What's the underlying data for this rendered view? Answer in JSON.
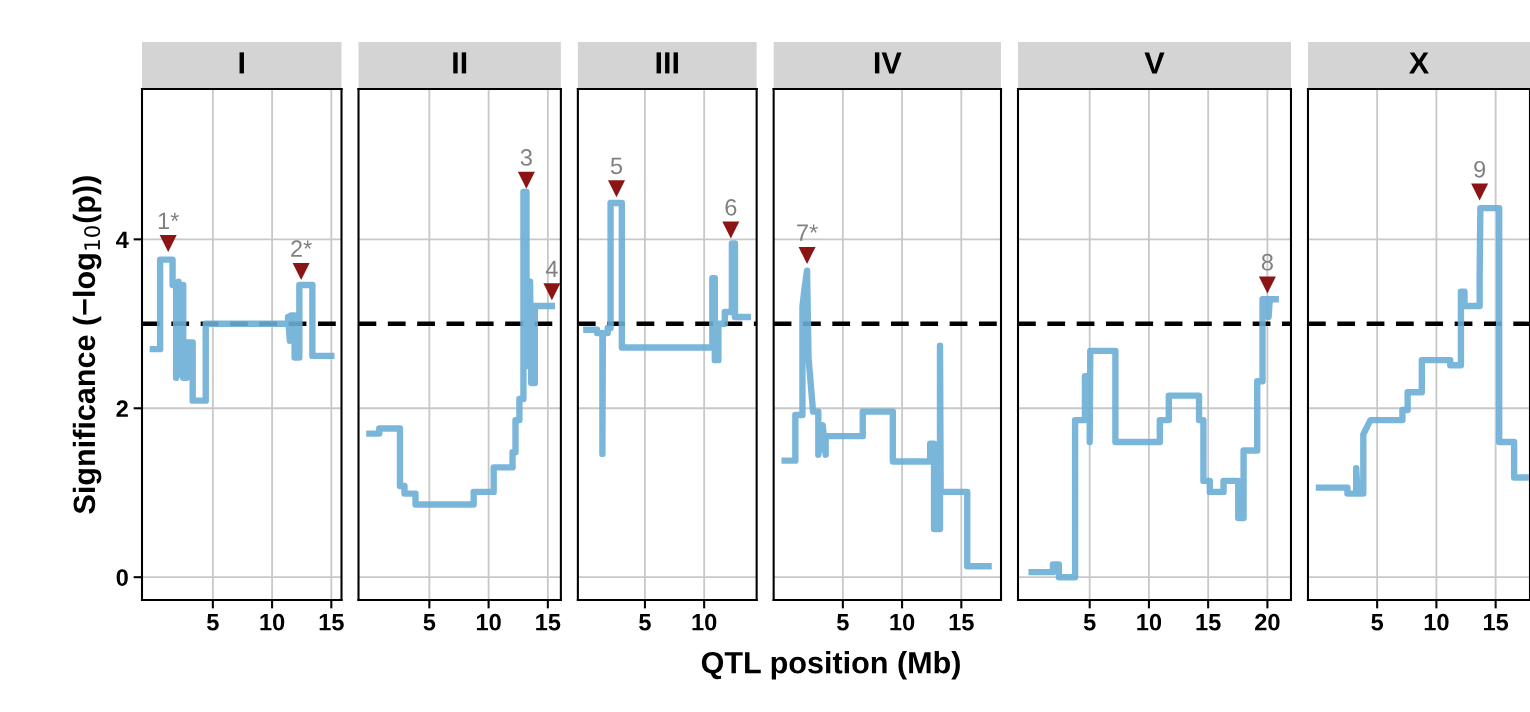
{
  "chart_data": [
    {
      "type": "line",
      "title": "I",
      "ylabel": "Significance (−log$_{10}$(p))",
      "xlim": [
        -0.98,
        15.86
      ],
      "xticks": [
        5,
        10,
        15
      ],
      "ylim": [
        -0.27,
        5.78
      ],
      "yticks": [
        0,
        2,
        4
      ],
      "grid": true,
      "line_style": "solid",
      "series": [
        {
          "color": "#6baed6",
          "x": [
            -0.06,
            0.55,
            0.55,
            1.6,
            1.6,
            1.9,
            1.9,
            2.1,
            2.2,
            2.5,
            2.5,
            2.8,
            2.8,
            3.3,
            3.3,
            4.4,
            4.4,
            11.35,
            11.35,
            11.5,
            11.6,
            11.9,
            11.9,
            12.3,
            12.3,
            13.4,
            13.4,
            15.0
          ],
          "values": [
            2.7,
            2.7,
            3.76,
            3.76,
            3.46,
            3.46,
            2.36,
            3.5,
            2.4,
            3.46,
            2.36,
            2.36,
            2.78,
            2.78,
            2.09,
            2.09,
            3.0,
            3.0,
            3.08,
            2.8,
            3.1,
            3.1,
            2.6,
            2.6,
            3.46,
            3.46,
            2.62,
            2.62
          ]
        },
        {
          "type": "scatter",
          "marker": "triangle",
          "color": "#8b1515",
          "x": [
            1.23,
            12.45
          ],
          "values": [
            3.95,
            3.62
          ]
        }
      ],
      "annotations": [
        {
          "text": "1*",
          "x": 1.23,
          "y": 3.95
        },
        {
          "text": "2*",
          "x": 12.45,
          "y": 3.62
        }
      ],
      "ref_lines": [
        {
          "axis": "y",
          "value": 3,
          "color": "#000000",
          "line_style": "dashed"
        }
      ]
    },
    {
      "type": "line",
      "title": "II",
      "xlim": [
        -0.98,
        16.1
      ],
      "xticks": [
        5,
        10,
        15
      ],
      "ylim": [
        -0.27,
        5.78
      ],
      "yticks": [
        0,
        2,
        4
      ],
      "grid": true,
      "tick_labels": "x",
      "line_style": "solid",
      "series": [
        {
          "color": "#6baed6",
          "x": [
            -0.06,
            0.77,
            0.77,
            2.52,
            2.52,
            2.9,
            2.9,
            3.83,
            3.83,
            8.74,
            8.74,
            10.43,
            10.43,
            12.02,
            12.02,
            12.27,
            12.27,
            12.6,
            12.6,
            12.94,
            12.94,
            13.2,
            13.2,
            13.5,
            13.6,
            13.9,
            13.9,
            15.34
          ],
          "values": [
            1.7,
            1.7,
            1.76,
            1.76,
            1.08,
            1.08,
            0.99,
            0.99,
            0.86,
            0.86,
            1.01,
            1.01,
            1.3,
            1.3,
            1.48,
            1.48,
            1.86,
            1.86,
            2.11,
            2.11,
            4.56,
            4.56,
            2.5,
            3.5,
            2.3,
            2.3,
            3.21,
            3.21
          ]
        },
        {
          "type": "scatter",
          "marker": "triangle",
          "color": "#8b1515",
          "x": [
            13.19,
            15.34
          ],
          "values": [
            4.7,
            3.38
          ]
        }
      ],
      "annotations": [
        {
          "text": "3",
          "x": 13.19,
          "y": 4.7
        },
        {
          "text": "4",
          "x": 15.34,
          "y": 3.38
        }
      ],
      "ref_lines": [
        {
          "axis": "y",
          "value": 3,
          "color": "#000000",
          "line_style": "dashed"
        }
      ]
    },
    {
      "type": "line",
      "title": "III",
      "xlim": [
        -0.66,
        14.43
      ],
      "xticks": [
        5,
        10
      ],
      "ylim": [
        -0.27,
        5.78
      ],
      "yticks": [
        0,
        2,
        4
      ],
      "grid": true,
      "tick_labels": "x",
      "line_style": "solid",
      "series": [
        {
          "color": "#6baed6",
          "x": [
            0.06,
            0.96,
            0.96,
            1.41,
            1.41,
            1.45,
            1.86,
            1.86,
            2.1,
            2.1,
            3.05,
            3.05,
            10.69,
            10.69,
            10.9,
            10.9,
            11.2,
            11.2,
            11.74,
            11.74,
            12.34,
            12.34,
            12.6,
            12.6,
            13.68
          ],
          "values": [
            2.93,
            2.93,
            2.89,
            2.89,
            1.46,
            2.89,
            2.89,
            2.95,
            2.95,
            4.43,
            4.43,
            2.72,
            2.72,
            3.54,
            3.54,
            2.57,
            2.57,
            3.0,
            3.0,
            3.14,
            3.14,
            3.95,
            3.95,
            3.08,
            3.08
          ]
        },
        {
          "type": "scatter",
          "marker": "triangle",
          "color": "#8b1515",
          "x": [
            2.6,
            12.25
          ],
          "values": [
            4.6,
            4.11
          ]
        }
      ],
      "annotations": [
        {
          "text": "5",
          "x": 2.6,
          "y": 4.6
        },
        {
          "text": "6",
          "x": 12.25,
          "y": 4.11
        }
      ],
      "ref_lines": [
        {
          "axis": "y",
          "value": 3,
          "color": "#000000",
          "line_style": "dashed"
        }
      ]
    },
    {
      "type": "line",
      "title": "IV",
      "xlabel": "QTL position (Mb)",
      "xlim": [
        -0.84,
        18.35
      ],
      "xticks": [
        5,
        10,
        15
      ],
      "ylim": [
        -0.27,
        5.78
      ],
      "yticks": [
        0,
        2,
        4
      ],
      "grid": true,
      "tick_labels": "x",
      "line_style": "solid",
      "series": [
        {
          "color": "#6baed6",
          "x": [
            0.09,
            0.99,
            0.99,
            1.59,
            1.59,
            1.75,
            1.98,
            2.1,
            2.49,
            2.93,
            2.93,
            3.3,
            3.55,
            3.55,
            6.68,
            6.68,
            9.22,
            9.22,
            12.37,
            12.37,
            12.7,
            12.7,
            13.2,
            13.2,
            13.26,
            15.5,
            15.5,
            17.3
          ],
          "values": [
            1.38,
            1.38,
            1.92,
            1.92,
            3.2,
            3.4,
            3.63,
            2.6,
            1.96,
            1.96,
            1.45,
            1.8,
            1.45,
            1.67,
            1.67,
            1.96,
            1.96,
            1.37,
            1.37,
            1.58,
            1.58,
            0.57,
            0.57,
            2.74,
            1.01,
            1.01,
            0.13,
            0.13
          ]
        },
        {
          "type": "scatter",
          "marker": "triangle",
          "color": "#8b1515",
          "x": [
            1.98
          ],
          "values": [
            3.81
          ]
        }
      ],
      "annotations": [
        {
          "text": "7*",
          "x": 1.98,
          "y": 3.81
        }
      ],
      "ref_lines": [
        {
          "axis": "y",
          "value": 3,
          "color": "#000000",
          "line_style": "dashed"
        }
      ]
    },
    {
      "type": "line",
      "title": "V",
      "xlim": [
        -1.05,
        21.99
      ],
      "xticks": [
        5,
        10,
        15,
        20
      ],
      "ylim": [
        -0.27,
        5.78
      ],
      "yticks": [
        0,
        2,
        4
      ],
      "grid": true,
      "tick_labels": "x",
      "line_style": "solid",
      "series": [
        {
          "color": "#6baed6",
          "x": [
            0.1,
            1.9,
            1.9,
            2.4,
            2.4,
            3.77,
            3.77,
            4.6,
            4.6,
            5.0,
            5.0,
            5.05,
            7.17,
            7.17,
            10.92,
            10.92,
            11.68,
            11.68,
            14.23,
            14.23,
            14.6,
            14.6,
            15.14,
            15.14,
            16.3,
            16.3,
            17.54,
            17.54,
            17.99,
            17.99,
            19.14,
            19.14,
            19.59,
            19.59,
            20.1,
            20.1,
            20.2,
            20.7
          ],
          "values": [
            0.06,
            0.06,
            0.15,
            0.15,
            0.0,
            0.0,
            1.86,
            1.86,
            2.38,
            2.38,
            1.6,
            2.68,
            2.68,
            1.6,
            1.6,
            1.86,
            1.86,
            2.15,
            2.15,
            1.86,
            1.86,
            1.14,
            1.14,
            1.01,
            1.01,
            1.14,
            1.14,
            0.7,
            0.7,
            1.5,
            1.5,
            2.32,
            2.32,
            3.29,
            3.29,
            3.08,
            3.29,
            3.29
          ]
        },
        {
          "type": "scatter",
          "marker": "triangle",
          "color": "#8b1515",
          "x": [
            20.0
          ],
          "values": [
            3.46
          ]
        }
      ],
      "annotations": [
        {
          "text": "8",
          "x": 20.0,
          "y": 3.46
        }
      ],
      "ref_lines": [
        {
          "axis": "y",
          "value": 3,
          "color": "#000000",
          "line_style": "dashed"
        }
      ]
    },
    {
      "type": "line",
      "title": "X",
      "xlim": [
        -0.84,
        17.9
      ],
      "xticks": [
        5,
        10,
        15
      ],
      "ylim": [
        -0.27,
        5.78
      ],
      "yticks": [
        0,
        2,
        4
      ],
      "grid": true,
      "tick_labels": "x",
      "line_style": "solid",
      "series": [
        {
          "color": "#6baed6",
          "x": [
            0.09,
            2.49,
            2.49,
            3.23,
            3.23,
            3.35,
            3.83,
            3.83,
            4.43,
            7.13,
            7.13,
            7.57,
            7.57,
            8.77,
            8.77,
            11.17,
            11.17,
            12.07,
            12.07,
            12.37,
            12.37,
            13.65,
            13.65,
            13.71,
            15.3,
            15.3,
            16.56,
            16.56,
            17.54
          ],
          "values": [
            1.06,
            1.06,
            0.99,
            0.99,
            1.29,
            0.99,
            0.99,
            1.69,
            1.86,
            1.86,
            1.98,
            1.98,
            2.19,
            2.19,
            2.57,
            2.57,
            2.51,
            2.51,
            3.38,
            3.38,
            3.21,
            3.21,
            3.57,
            4.37,
            4.37,
            1.6,
            1.6,
            1.18,
            1.18
          ]
        },
        {
          "type": "scatter",
          "marker": "triangle",
          "color": "#8b1515",
          "x": [
            13.65
          ],
          "values": [
            4.56
          ]
        }
      ],
      "annotations": [
        {
          "text": "9",
          "x": 13.65,
          "y": 4.56
        }
      ],
      "ref_lines": [
        {
          "axis": "y",
          "value": 3,
          "color": "#000000",
          "line_style": "dashed"
        }
      ]
    }
  ]
}
